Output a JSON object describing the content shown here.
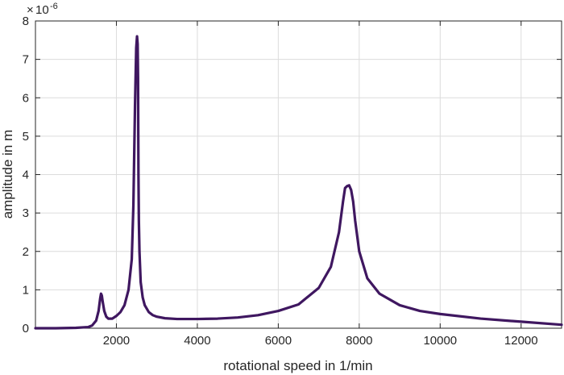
{
  "chart_data": {
    "type": "line",
    "title": "",
    "xlabel": "rotational speed in 1/min",
    "ylabel": "amplitude in m",
    "y_exponent_label": "× 10^-6",
    "y_exponent_base": "10",
    "y_exponent_power": "-6",
    "xlim": [
      0,
      13000
    ],
    "ylim": [
      0,
      8
    ],
    "xticks": [
      2000,
      4000,
      6000,
      8000,
      10000,
      12000
    ],
    "yticks": [
      0,
      1,
      2,
      3,
      4,
      5,
      6,
      7,
      8
    ],
    "grid": true,
    "line_color": "#3f1760",
    "series": [
      {
        "x": [
          0,
          500,
          1000,
          1300,
          1400,
          1500,
          1560,
          1600,
          1620,
          1640,
          1660,
          1700,
          1750,
          1800,
          1900,
          2000,
          2100,
          2200,
          2300,
          2380,
          2420,
          2460,
          2490,
          2510,
          2525,
          2535,
          2545,
          2555,
          2570,
          2600,
          2650,
          2700,
          2800,
          2900,
          3000,
          3200,
          3500,
          4000,
          4500,
          5000,
          5500,
          6000,
          6500,
          7000,
          7300,
          7500,
          7600,
          7650,
          7700,
          7750,
          7800,
          7850,
          7900,
          8000,
          8200,
          8500,
          9000,
          9500,
          10000,
          11000,
          12000,
          13000
        ],
        "y": [
          0,
          0,
          0.01,
          0.03,
          0.07,
          0.2,
          0.45,
          0.78,
          0.9,
          0.85,
          0.7,
          0.45,
          0.3,
          0.25,
          0.25,
          0.32,
          0.42,
          0.6,
          1.0,
          1.8,
          3.2,
          5.8,
          7.3,
          7.6,
          7.4,
          6.5,
          4.0,
          2.8,
          2.0,
          1.2,
          0.8,
          0.6,
          0.42,
          0.34,
          0.3,
          0.26,
          0.24,
          0.24,
          0.25,
          0.28,
          0.34,
          0.45,
          0.62,
          1.05,
          1.6,
          2.5,
          3.3,
          3.65,
          3.7,
          3.72,
          3.6,
          3.3,
          2.8,
          2.0,
          1.3,
          0.9,
          0.6,
          0.45,
          0.37,
          0.25,
          0.17,
          0.09
        ]
      }
    ]
  }
}
